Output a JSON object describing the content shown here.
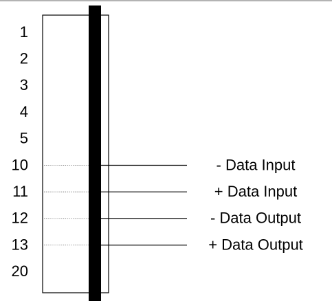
{
  "pins": [
    {
      "number": "1",
      "signal": ""
    },
    {
      "number": "2",
      "signal": ""
    },
    {
      "number": "3",
      "signal": ""
    },
    {
      "number": "4",
      "signal": ""
    },
    {
      "number": "5",
      "signal": ""
    },
    {
      "number": "10",
      "signal": "- Data Input"
    },
    {
      "number": "11",
      "signal": "+ Data Input"
    },
    {
      "number": "12",
      "signal": "- Data Output"
    },
    {
      "number": "13",
      "signal": "+ Data Output"
    },
    {
      "number": "20",
      "signal": ""
    }
  ],
  "colors": {
    "line": "#000000",
    "background": "#ffffff"
  }
}
